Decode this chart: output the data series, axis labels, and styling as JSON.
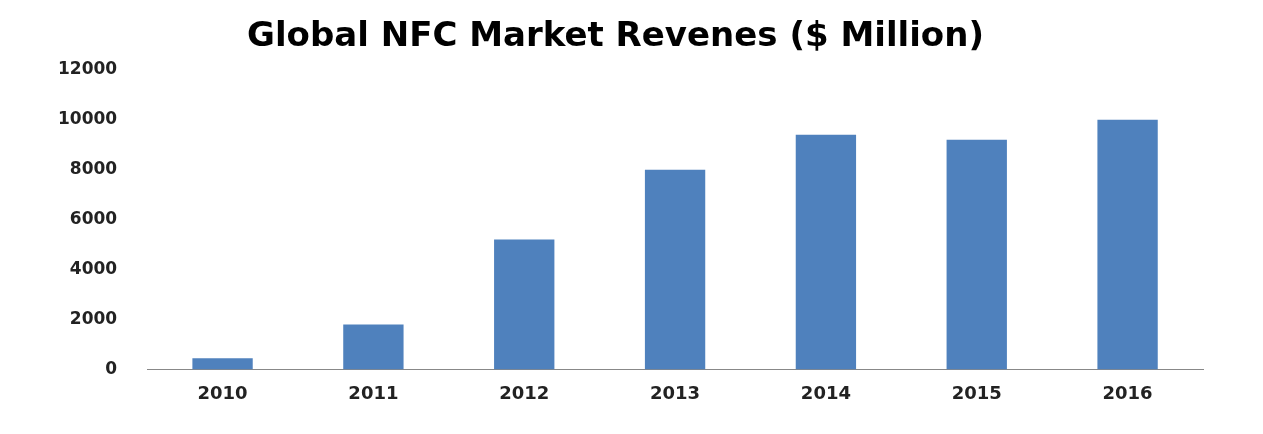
{
  "chart_data": {
    "type": "bar",
    "title": "Global NFC Market Revenes ($ Million)",
    "categories": [
      "2010",
      "2011",
      "2012",
      "2013",
      "2014",
      "2015",
      "2016"
    ],
    "values": [
      450,
      1800,
      5200,
      8000,
      9400,
      9200,
      10000
    ],
    "color": "#4f81bd",
    "ylim": [
      0,
      12000
    ],
    "yticks": [
      0,
      2000,
      4000,
      6000,
      8000,
      10000,
      12000
    ],
    "grid": false
  }
}
